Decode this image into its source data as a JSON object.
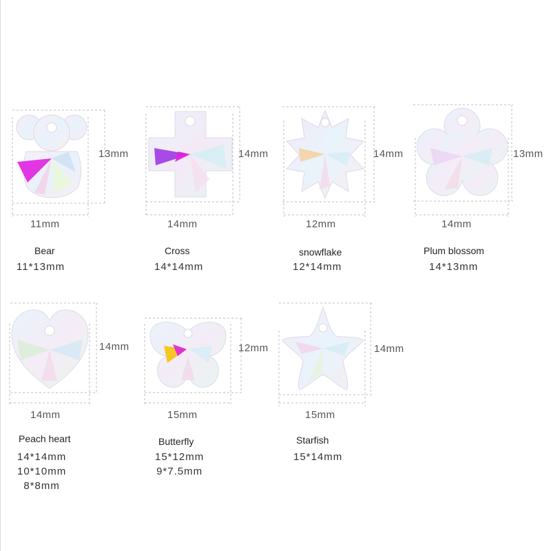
{
  "products": [
    {
      "id": "bear",
      "icon": "bear-crystal-icon",
      "name": "Bear",
      "width_label": "11mm",
      "height_label": "13mm",
      "sizes": [
        "11*13mm"
      ]
    },
    {
      "id": "cross",
      "icon": "cross-crystal-icon",
      "name": "Cross",
      "width_label": "14mm",
      "height_label": "14mm",
      "sizes": [
        "14*14mm"
      ]
    },
    {
      "id": "snowflake",
      "icon": "snowflake-crystal-icon",
      "name": "snowflake",
      "width_label": "12mm",
      "height_label": "14mm",
      "sizes": [
        "12*14mm"
      ]
    },
    {
      "id": "plum",
      "icon": "plum-blossom-crystal-icon",
      "name": "Plum blossom",
      "width_label": "14mm",
      "height_label": "13mm",
      "sizes": [
        "14*13mm"
      ]
    },
    {
      "id": "heart",
      "icon": "heart-crystal-icon",
      "name": "Peach heart",
      "width_label": "14mm",
      "height_label": "14mm",
      "sizes": [
        "14*14mm",
        "10*10mm",
        "8*8mm"
      ]
    },
    {
      "id": "butterfly",
      "icon": "butterfly-crystal-icon",
      "name": "Butterfly",
      "width_label": "15mm",
      "height_label": "12mm",
      "sizes": [
        "15*12mm",
        "9*7.5mm"
      ]
    },
    {
      "id": "starfish",
      "icon": "starfish-crystal-icon",
      "name": "Starfish",
      "width_label": "15mm",
      "height_label": "14mm",
      "sizes": [
        "15*14mm"
      ]
    }
  ],
  "colors": {
    "crystal_base": "#eef4fb",
    "accent_magenta": "#e020e0",
    "accent_gold": "#f3c419",
    "guide": "#bdbdbd"
  }
}
